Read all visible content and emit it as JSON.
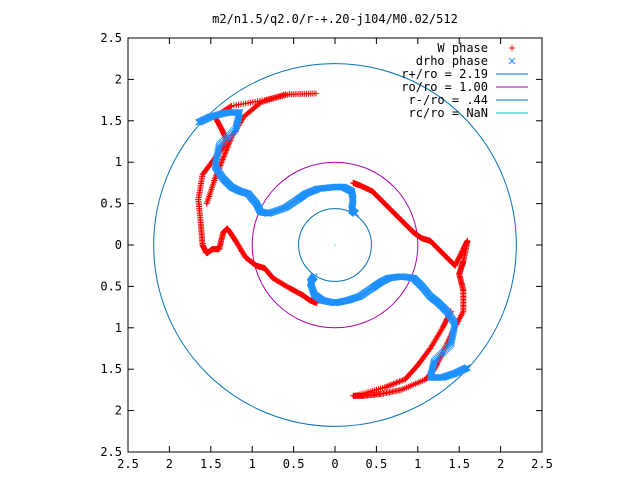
{
  "chart_data": {
    "type": "scatter",
    "title": "m2/n1.5/q2.0/r-+.20-j104/M0.02/512",
    "xlabel": "",
    "ylabel": "",
    "xlim": [
      -2.5,
      2.5
    ],
    "ylim": [
      -2.5,
      2.5
    ],
    "x_tick_values": [
      -2.5,
      -2,
      -1.5,
      -1,
      -0.5,
      0,
      0.5,
      1,
      1.5,
      2,
      2.5
    ],
    "x_tick_labels": [
      "2.5",
      "2",
      "1.5",
      "1",
      "0.5",
      "0",
      "0.5",
      "1",
      "1.5",
      "2",
      "2.5"
    ],
    "y_tick_values": [
      2.5,
      2,
      1.5,
      1,
      0.5,
      0,
      -0.5,
      -1,
      -1.5,
      -2,
      -2.5
    ],
    "y_tick_labels": [
      "2.5",
      "2",
      "1.5",
      "1",
      "0.5",
      "0",
      "0.5",
      "1",
      "1.5",
      "2",
      "2.5"
    ],
    "grid": false,
    "legend_position": "top-right",
    "series": [
      {
        "name": "W phase",
        "marker": "plus",
        "color": "#ff0000",
        "arms": [
          [
            [
              -0.23,
              1.83
            ],
            [
              -0.55,
              1.82
            ],
            [
              -0.85,
              1.75
            ],
            [
              -1.25,
              1.68
            ],
            [
              -1.45,
              1.55
            ],
            [
              -1.37,
              1.4
            ],
            [
              -1.3,
              1.25
            ],
            [
              -1.45,
              1.05
            ],
            [
              -1.6,
              0.85
            ],
            [
              -1.65,
              0.55
            ],
            [
              -1.62,
              0.25
            ],
            [
              -1.6,
              0.0
            ],
            [
              -1.55,
              -0.1
            ],
            [
              -1.48,
              -0.05
            ],
            [
              -1.4,
              -0.05
            ],
            [
              -1.35,
              0.15
            ],
            [
              -1.3,
              0.2
            ],
            [
              -1.2,
              0.05
            ],
            [
              -1.08,
              -0.15
            ],
            [
              -0.95,
              -0.25
            ],
            [
              -0.85,
              -0.28
            ],
            [
              -0.75,
              -0.4
            ],
            [
              -0.55,
              -0.52
            ],
            [
              -0.4,
              -0.6
            ],
            [
              -0.3,
              -0.67
            ],
            [
              -0.22,
              -0.7
            ]
          ],
          [
            [
              -0.6,
              1.82
            ],
            [
              -0.9,
              1.72
            ],
            [
              -1.1,
              1.55
            ],
            [
              -1.25,
              1.3
            ],
            [
              -1.35,
              1.05
            ],
            [
              -1.45,
              0.8
            ],
            [
              -1.55,
              0.5
            ]
          ],
          [
            [
              0.22,
              0.75
            ],
            [
              0.3,
              0.72
            ],
            [
              0.45,
              0.65
            ],
            [
              0.55,
              0.55
            ],
            [
              0.65,
              0.45
            ],
            [
              0.75,
              0.35
            ],
            [
              0.85,
              0.25
            ],
            [
              0.95,
              0.15
            ],
            [
              1.05,
              0.08
            ],
            [
              1.15,
              0.05
            ],
            [
              1.25,
              -0.05
            ],
            [
              1.35,
              -0.15
            ],
            [
              1.45,
              -0.25
            ],
            [
              1.55,
              -0.05
            ],
            [
              1.6,
              0.05
            ],
            [
              1.55,
              -0.2
            ],
            [
              1.5,
              -0.35
            ],
            [
              1.55,
              -0.55
            ],
            [
              1.55,
              -0.8
            ],
            [
              1.42,
              -1.05
            ],
            [
              1.3,
              -1.3
            ],
            [
              1.2,
              -1.5
            ],
            [
              1.1,
              -1.62
            ],
            [
              0.8,
              -1.75
            ],
            [
              0.55,
              -1.8
            ],
            [
              0.35,
              -1.82
            ],
            [
              0.22,
              -1.82
            ]
          ],
          [
            [
              0.25,
              -1.82
            ],
            [
              0.6,
              -1.72
            ],
            [
              0.85,
              -1.62
            ],
            [
              1.0,
              -1.45
            ],
            [
              1.15,
              -1.25
            ],
            [
              1.3,
              -1.0
            ],
            [
              1.4,
              -0.8
            ]
          ]
        ]
      },
      {
        "name": "drho phase",
        "marker": "cross",
        "color": "#1e90ff",
        "arms": [
          [
            [
              -1.65,
              1.48
            ],
            [
              -1.5,
              1.55
            ],
            [
              -1.3,
              1.6
            ],
            [
              -1.15,
              1.6
            ],
            [
              -1.2,
              1.4
            ],
            [
              -1.4,
              1.2
            ],
            [
              -1.45,
              0.95
            ],
            [
              -1.35,
              0.8
            ],
            [
              -1.25,
              0.7
            ],
            [
              -1.15,
              0.65
            ],
            [
              -1.05,
              0.62
            ],
            [
              -0.95,
              0.5
            ],
            [
              -0.9,
              0.4
            ],
            [
              -0.8,
              0.38
            ],
            [
              -0.6,
              0.45
            ],
            [
              -0.45,
              0.55
            ],
            [
              -0.35,
              0.62
            ],
            [
              -0.2,
              0.68
            ],
            [
              0.0,
              0.7
            ],
            [
              0.1,
              0.7
            ],
            [
              0.2,
              0.65
            ],
            [
              0.22,
              0.55
            ],
            [
              0.2,
              0.42
            ],
            [
              0.25,
              0.38
            ]
          ],
          [
            [
              1.6,
              -1.48
            ],
            [
              1.45,
              -1.55
            ],
            [
              1.3,
              -1.6
            ],
            [
              1.15,
              -1.6
            ],
            [
              1.2,
              -1.4
            ],
            [
              1.4,
              -1.2
            ],
            [
              1.45,
              -0.95
            ],
            [
              1.35,
              -0.8
            ],
            [
              1.25,
              -0.7
            ],
            [
              1.15,
              -0.62
            ],
            [
              1.05,
              -0.5
            ],
            [
              0.95,
              -0.4
            ],
            [
              0.8,
              -0.38
            ],
            [
              0.65,
              -0.4
            ],
            [
              0.55,
              -0.45
            ],
            [
              0.45,
              -0.52
            ],
            [
              0.3,
              -0.62
            ],
            [
              0.15,
              -0.67
            ],
            [
              0.0,
              -0.7
            ],
            [
              -0.15,
              -0.67
            ],
            [
              -0.25,
              -0.6
            ],
            [
              -0.3,
              -0.45
            ],
            [
              -0.25,
              -0.38
            ]
          ]
        ]
      }
    ],
    "circles": [
      {
        "name": "r+/ro = 2.19",
        "radius": 2.19,
        "color": "#0072bd"
      },
      {
        "name": "ro/ro = 1.00",
        "radius": 1.0,
        "color": "#b000b0"
      },
      {
        "name": "r-/ro = .44",
        "radius": 0.44,
        "color": "#0072bd"
      },
      {
        "name": "rc/ro = NaN",
        "radius": null,
        "color": "#00b7c3"
      }
    ]
  }
}
